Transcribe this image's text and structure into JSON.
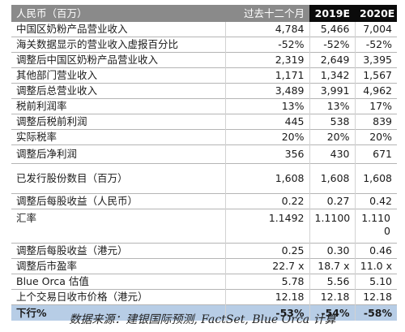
{
  "table": {
    "headers": [
      "人民币（百万）",
      "过去十二个月",
      "2019E",
      "2020E"
    ],
    "rows": [
      [
        "中国区奶粉产品营业收入",
        "4,784",
        "5,466",
        "7,004"
      ],
      [
        "海关数据显示的营业收入虚报百分比",
        "-52%",
        "-52%",
        "-52%"
      ],
      [
        "调整后中国区奶粉产品营业收入",
        "2,319",
        "2,649",
        "3,395"
      ],
      [
        "其他部门营业收入",
        "1,171",
        "1,342",
        "1,567"
      ],
      [
        "调整后总营业收入",
        "3,489",
        "3,991",
        "4,962"
      ],
      [
        "税前利润率",
        "13%",
        "13%",
        "17%"
      ],
      [
        "调整后税前利润",
        "445",
        "538",
        "839"
      ],
      [
        "实际税率",
        "20%",
        "20%",
        "20%"
      ],
      [
        "调整后净利润",
        "356",
        "430",
        "671"
      ],
      [
        "已发行股份数目（百万）",
        "1,608",
        "1,608",
        "1,608"
      ],
      [
        "调整后每股收益（人民币）",
        "0.22",
        "0.27",
        "0.42"
      ],
      [
        "汇率",
        "1.1492",
        "1.1100",
        "1.1100"
      ],
      [
        "调整后每股收益（港元）",
        "0.25",
        "0.30",
        "0.46"
      ],
      [
        "调整后市盈率",
        "22.7 x",
        "18.7 x",
        "11.0 x"
      ],
      [
        "Blue Orca 估值",
        "5.78",
        "5.56",
        "5.10"
      ],
      [
        "上个交易日收市价格（港元）",
        "12.18",
        "12.18",
        "12.18"
      ]
    ],
    "footer": [
      "下行%",
      "-53%",
      "-54%",
      "-58%"
    ]
  },
  "source_note": "数据来源：建银国际预测, FactSet, Blue Orca 计算",
  "colors": {
    "header_gray": "#8a8a8a",
    "header_black": "#0b0b0b",
    "footer_blue": "#b7cde6"
  }
}
